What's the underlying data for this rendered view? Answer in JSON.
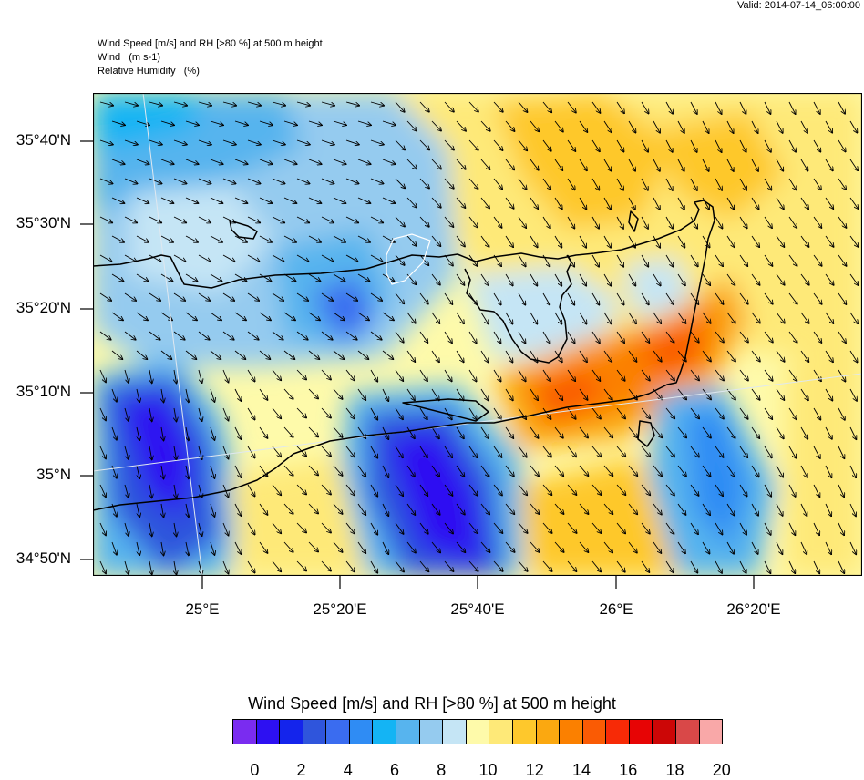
{
  "valid_time": "Valid: 2014-07-14_06:00:00",
  "header": {
    "line1": "Wind Speed [m/s] and RH [>80 %] at 500 m height",
    "line2": "Wind   (m s-1)",
    "line3": "Relative Humidity   (%)"
  },
  "axes": {
    "lat_labels": [
      "35°40'N",
      "35°30'N",
      "35°20'N",
      "35°10'N",
      "35°N",
      "34°50'N"
    ],
    "lon_labels": [
      "25°E",
      "25°20'E",
      "25°40'E",
      "26°E",
      "26°20'E"
    ]
  },
  "colorbar": {
    "title": "Wind Speed [m/s] and RH [>80 %] at 500 m height",
    "tick_labels": [
      "0",
      "2",
      "4",
      "6",
      "8",
      "10",
      "12",
      "14",
      "16",
      "18",
      "20"
    ],
    "colors": [
      "#7a2cf0",
      "#2d10f2",
      "#1424ec",
      "#2f55dc",
      "#3a6cf0",
      "#2f8cf4",
      "#14b4f4",
      "#57b4ee",
      "#95cbef",
      "#c5e5f5",
      "#fefaaa",
      "#fee978",
      "#fec82c",
      "#fba810",
      "#fb8000",
      "#fa5b04",
      "#f72a06",
      "#e70405",
      "#cc0606",
      "#d94848",
      "#f9a8a8"
    ]
  },
  "map_colors": {
    "ocean_default": "#fefaaa",
    "coast": "#000000",
    "wind_arrow": "#000000"
  }
}
